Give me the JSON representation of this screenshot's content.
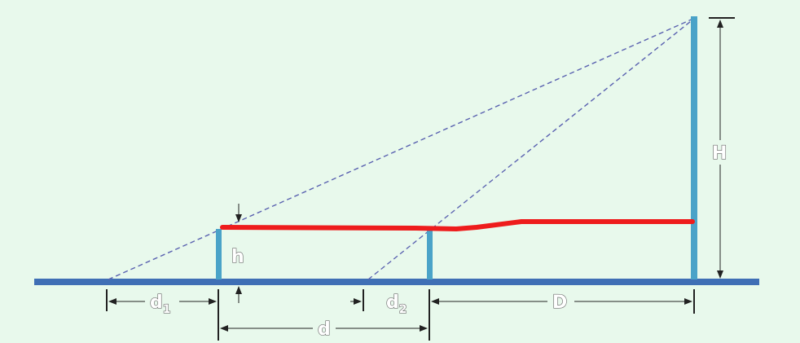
{
  "diagram": {
    "labels": {
      "H": "H",
      "h": "h",
      "D": "D",
      "d": "d",
      "d1_main": "d",
      "d1_sub": "1",
      "d2_main": "d",
      "d2_sub": "2"
    },
    "colors": {
      "background": "#e8f9ec",
      "ground": "#3f6fb5",
      "pole": "#4aa3c8",
      "sightline": "#5a62b0",
      "highlight": "#ee1c1c",
      "dimension": "#222222",
      "label_fill": "#ffffff",
      "label_stroke": "#6f6f6f"
    }
  }
}
